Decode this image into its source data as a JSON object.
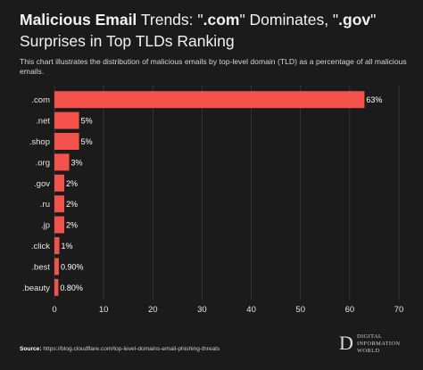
{
  "title": {
    "part1": "Malicious Email",
    "part2": " Trends: \"",
    "part3": ".com",
    "part4": "\" Dominates, \"",
    "part5": ".gov",
    "part6": "\"",
    "line2": "Surprises in Top TLDs Ranking"
  },
  "description": "This chart illustrates the distribution of malicious emails by top-level domain (TLD) as a percentage of all malicious emails.",
  "source": {
    "label": "Source:",
    "text": " https://blog.cloudflare.com/top-level-domains-email-phishing-threats"
  },
  "brand": {
    "mark": "D",
    "lines": [
      "DIGITAL",
      "INFORMATION",
      "WORLD"
    ]
  },
  "colors": {
    "bar": "#f4514a",
    "background": "#1b1b1b",
    "gridline": "#3a3a3a"
  },
  "chart_data": {
    "type": "bar",
    "orientation": "horizontal",
    "categories": [
      ".com",
      ".net",
      ".shop",
      ".org",
      ".gov",
      ".ru",
      ".jp",
      ".click",
      ".best",
      ".beauty"
    ],
    "values": [
      63,
      5,
      5,
      3,
      2,
      2,
      2,
      1,
      0.9,
      0.8
    ],
    "data_labels": [
      "63%",
      "5%",
      "5%",
      "3%",
      "2%",
      "2%",
      "2%",
      "1%",
      "0.90%",
      "0.80%"
    ],
    "xlim": [
      0,
      70
    ],
    "xticks": [
      0,
      10,
      20,
      30,
      40,
      50,
      60,
      70
    ],
    "xlabel": "",
    "ylabel": "",
    "grid": "vertical"
  }
}
